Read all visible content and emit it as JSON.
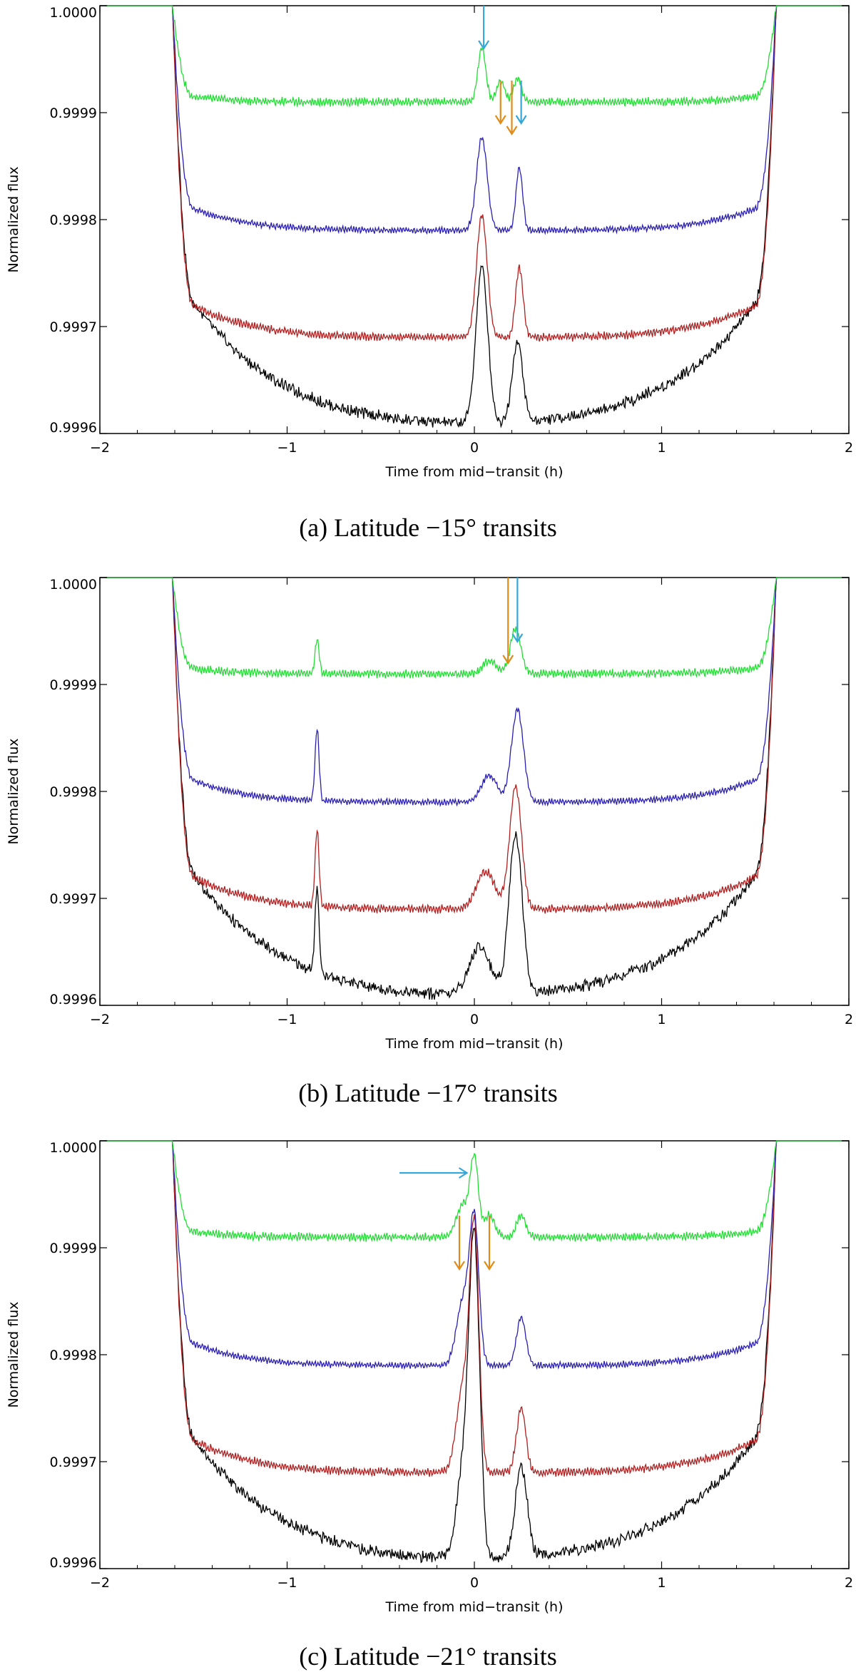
{
  "figure": {
    "panels": [
      {
        "caption": "(a) Latitude −15° transits",
        "chart_data": {
          "type": "line",
          "title": "",
          "xlabel": "Time from mid−transit (h)",
          "ylabel": "Normalized flux",
          "xlim": [
            -2,
            2
          ],
          "ylim": [
            0.9996,
            1.0
          ],
          "xticks": [
            -2,
            -1,
            0,
            1,
            2
          ],
          "xtick_labels": [
            "−2",
            "−1",
            "0",
            "1",
            "2"
          ],
          "yticks": [
            0.9996,
            0.9997,
            0.9998,
            0.9999,
            1.0
          ],
          "ytick_labels": [
            "0.9996",
            "0.9997",
            "0.9998",
            "0.9999",
            "1.0000"
          ],
          "transit_ingress": -1.58,
          "transit_egress": 1.58,
          "series": [
            {
              "name": "green",
              "color": "#22dd33",
              "base": 0.99991,
              "spread": 3.2e-06,
              "exponent": 6,
              "ripple": 2.8e-06,
              "bumps": [
                {
                  "t": 0.04,
                  "h": 5e-05,
                  "w": 0.03
                },
                {
                  "t": 0.14,
                  "h": 2e-05,
                  "w": 0.03
                },
                {
                  "t": 0.23,
                  "h": 2.2e-05,
                  "w": 0.03
                }
              ]
            },
            {
              "name": "blue",
              "color": "#2a1fb0",
              "base": 0.99979,
              "spread": 1.2e-05,
              "exponent": 4,
              "ripple": 2.2e-06,
              "bumps": [
                {
                  "t": 0.04,
                  "h": 8.7e-05,
                  "w": 0.04
                },
                {
                  "t": 0.24,
                  "h": 5.8e-05,
                  "w": 0.025
                }
              ]
            },
            {
              "name": "red",
              "color": "#b02020",
              "base": 0.99969,
              "spread": 1.7e-05,
              "exponent": 3.5,
              "ripple": 2.8e-06,
              "bumps": [
                {
                  "t": 0.04,
                  "h": 0.000115,
                  "w": 0.04
                },
                {
                  "t": 0.24,
                  "h": 6.5e-05,
                  "w": 0.028
                }
              ]
            },
            {
              "name": "black",
              "color": "#000000",
              "base": 0.99961,
              "spread": 6e-05,
              "exponent": 2.2,
              "ripple": 1.4e-06,
              "bumps": [
                {
                  "t": 0.04,
                  "h": 0.000145,
                  "w": 0.045
                },
                {
                  "t": 0.23,
                  "h": 7.5e-05,
                  "w": 0.04
                }
              ]
            }
          ],
          "arrows": [
            {
              "x": 0.05,
              "y_top": 1.0,
              "y_tip": 0.99996,
              "direction": "down",
              "color": "#36a8d8"
            },
            {
              "x": 0.14,
              "y_top": 0.99993,
              "y_tip": 0.99989,
              "direction": "down",
              "color": "#e08c1a"
            },
            {
              "x": 0.2,
              "y_top": 0.99993,
              "y_tip": 0.99988,
              "direction": "down",
              "color": "#e08c1a"
            },
            {
              "x": 0.25,
              "y_top": 0.99993,
              "y_tip": 0.99989,
              "direction": "down",
              "color": "#36a8d8"
            }
          ]
        }
      },
      {
        "caption": "(b) Latitude −17° transits",
        "chart_data": {
          "type": "line",
          "title": "",
          "xlabel": "Time from mid−transit (h)",
          "ylabel": "Normalized flux",
          "xlim": [
            -2,
            2
          ],
          "ylim": [
            0.9996,
            1.0
          ],
          "xticks": [
            -2,
            -1,
            0,
            1,
            2
          ],
          "xtick_labels": [
            "−2",
            "−1",
            "0",
            "1",
            "2"
          ],
          "yticks": [
            0.9996,
            0.9997,
            0.9998,
            0.9999,
            1.0
          ],
          "ytick_labels": [
            "0.9996",
            "0.9997",
            "0.9998",
            "0.9999",
            "1.0000"
          ],
          "transit_ingress": -1.58,
          "transit_egress": 1.58,
          "series": [
            {
              "name": "green",
              "color": "#22dd33",
              "base": 0.99991,
              "spread": 3.2e-06,
              "exponent": 6,
              "ripple": 2.8e-06,
              "bumps": [
                {
                  "t": -0.84,
                  "h": 3.3e-05,
                  "w": 0.015
                },
                {
                  "t": 0.08,
                  "h": 1.2e-05,
                  "w": 0.05
                },
                {
                  "t": 0.22,
                  "h": 4.2e-05,
                  "w": 0.04
                }
              ]
            },
            {
              "name": "blue",
              "color": "#2a1fb0",
              "base": 0.99979,
              "spread": 1.2e-05,
              "exponent": 4,
              "ripple": 2.2e-06,
              "bumps": [
                {
                  "t": -0.84,
                  "h": 6.7e-05,
                  "w": 0.015
                },
                {
                  "t": 0.08,
                  "h": 2.5e-05,
                  "w": 0.06
                },
                {
                  "t": 0.23,
                  "h": 8.7e-05,
                  "w": 0.045
                }
              ]
            },
            {
              "name": "red",
              "color": "#b02020",
              "base": 0.99969,
              "spread": 1.7e-05,
              "exponent": 3.5,
              "ripple": 2.8e-06,
              "bumps": [
                {
                  "t": -0.84,
                  "h": 7.3e-05,
                  "w": 0.015
                },
                {
                  "t": 0.06,
                  "h": 3.5e-05,
                  "w": 0.07
                },
                {
                  "t": 0.22,
                  "h": 0.000115,
                  "w": 0.045
                }
              ]
            },
            {
              "name": "black",
              "color": "#000000",
              "base": 0.99961,
              "spread": 6e-05,
              "exponent": 2.2,
              "ripple": 1.4e-06,
              "bumps": [
                {
                  "t": -0.84,
                  "h": 8e-05,
                  "w": 0.015
                },
                {
                  "t": 0.03,
                  "h": 4.5e-05,
                  "w": 0.08
                },
                {
                  "t": 0.22,
                  "h": 0.00015,
                  "w": 0.05
                }
              ]
            }
          ],
          "arrows": [
            {
              "x": 0.18,
              "y_top": 1.0,
              "y_tip": 0.99992,
              "direction": "down",
              "color": "#e08c1a"
            },
            {
              "x": 0.23,
              "y_top": 1.0,
              "y_tip": 0.99994,
              "direction": "down",
              "color": "#36a8d8"
            }
          ]
        }
      },
      {
        "caption": "(c) Latitude −21° transits",
        "chart_data": {
          "type": "line",
          "title": "",
          "xlabel": "Time from mid−transit (h)",
          "ylabel": "Normalized flux",
          "xlim": [
            -2,
            2
          ],
          "ylim": [
            0.9996,
            1.0
          ],
          "xticks": [
            -2,
            -1,
            0,
            1,
            2
          ],
          "xtick_labels": [
            "−2",
            "−1",
            "0",
            "1",
            "2"
          ],
          "yticks": [
            0.9996,
            0.9997,
            0.9998,
            0.9999,
            1.0
          ],
          "ytick_labels": [
            "0.9996",
            "0.9997",
            "0.9998",
            "0.9999",
            "1.0000"
          ],
          "transit_ingress": -1.58,
          "transit_egress": 1.58,
          "series": [
            {
              "name": "green",
              "color": "#22dd33",
              "base": 0.99991,
              "spread": 3.2e-06,
              "exponent": 6,
              "ripple": 2.8e-06,
              "bumps": [
                {
                  "t": -0.06,
                  "h": 3e-05,
                  "w": 0.05
                },
                {
                  "t": 0.0,
                  "h": 7e-05,
                  "w": 0.03
                },
                {
                  "t": 0.08,
                  "h": 2e-05,
                  "w": 0.04
                },
                {
                  "t": 0.25,
                  "h": 2e-05,
                  "w": 0.035
                }
              ]
            },
            {
              "name": "blue",
              "color": "#2a1fb0",
              "base": 0.99979,
              "spread": 1.2e-05,
              "exponent": 4,
              "ripple": 2.2e-06,
              "bumps": [
                {
                  "t": -0.06,
                  "h": 6e-05,
                  "w": 0.05
                },
                {
                  "t": 0.0,
                  "h": 0.00013,
                  "w": 0.035
                },
                {
                  "t": 0.25,
                  "h": 4.5e-05,
                  "w": 0.035
                }
              ]
            },
            {
              "name": "red",
              "color": "#b02020",
              "base": 0.99969,
              "spread": 1.7e-05,
              "exponent": 3.5,
              "ripple": 2.8e-06,
              "bumps": [
                {
                  "t": -0.06,
                  "h": 8e-05,
                  "w": 0.05
                },
                {
                  "t": 0.0,
                  "h": 0.00022,
                  "w": 0.035
                },
                {
                  "t": 0.25,
                  "h": 6e-05,
                  "w": 0.035
                }
              ]
            },
            {
              "name": "black",
              "color": "#000000",
              "base": 0.99961,
              "spread": 6e-05,
              "exponent": 2.2,
              "ripple": 1.4e-06,
              "bumps": [
                {
                  "t": -0.06,
                  "h": 8e-05,
                  "w": 0.05
                },
                {
                  "t": 0.0,
                  "h": 0.00029,
                  "w": 0.04
                },
                {
                  "t": 0.25,
                  "h": 8.5e-05,
                  "w": 0.045
                }
              ]
            }
          ],
          "arrows": [
            {
              "x": -0.4,
              "y_tip": 0.99997,
              "x_tip": -0.04,
              "direction": "right",
              "color": "#36a8d8"
            },
            {
              "x": -0.08,
              "y_top": 0.99993,
              "y_tip": 0.99988,
              "direction": "down",
              "color": "#e08c1a"
            },
            {
              "x": 0.08,
              "y_top": 0.99993,
              "y_tip": 0.99988,
              "direction": "down",
              "color": "#e08c1a"
            }
          ]
        }
      }
    ]
  }
}
